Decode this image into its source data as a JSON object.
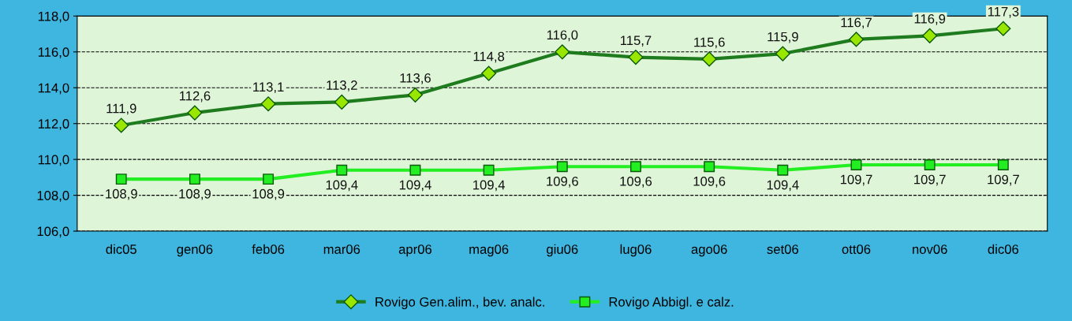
{
  "chart_data": {
    "type": "line",
    "categories": [
      "dic05",
      "gen06",
      "feb06",
      "mar06",
      "apr06",
      "mag06",
      "giu06",
      "lug06",
      "ago06",
      "set06",
      "ott06",
      "nov06",
      "dic06"
    ],
    "series": [
      {
        "name": "Rovigo Gen.alim., bev. analc.",
        "color": "#1e7b1e",
        "marker": "diamond",
        "values": [
          111.9,
          112.6,
          113.1,
          113.2,
          113.6,
          114.8,
          116.0,
          115.7,
          115.6,
          115.9,
          116.7,
          116.9,
          117.3
        ],
        "value_labels": [
          "111,9",
          "112,6",
          "113,1",
          "113,2",
          "113,6",
          "114,8",
          "116,0",
          "115,7",
          "115,6",
          "115,9",
          "116,7",
          "116,9",
          "117,3"
        ]
      },
      {
        "name": "Rovigo Abbigl. e calz.",
        "color": "#22ee22",
        "marker": "square",
        "values": [
          108.9,
          108.9,
          108.9,
          109.4,
          109.4,
          109.4,
          109.6,
          109.6,
          109.6,
          109.4,
          109.7,
          109.7,
          109.7
        ],
        "value_labels": [
          "108,9",
          "108,9",
          "108,9",
          "109,4",
          "109,4",
          "109,4",
          "109,6",
          "109,6",
          "109,6",
          "109,4",
          "109,7",
          "109,7",
          "109,7"
        ]
      }
    ],
    "ylim": [
      106,
      118
    ],
    "yticks": [
      {
        "value": 106,
        "label": "106,0"
      },
      {
        "value": 108,
        "label": "108,0"
      },
      {
        "value": 110,
        "label": "110,0"
      },
      {
        "value": 112,
        "label": "112,0"
      },
      {
        "value": 114,
        "label": "114,0"
      },
      {
        "value": 116,
        "label": "116,0"
      },
      {
        "value": 118,
        "label": "118,0"
      }
    ],
    "grid": "y",
    "line_style": "solid",
    "legend": "bottom"
  }
}
